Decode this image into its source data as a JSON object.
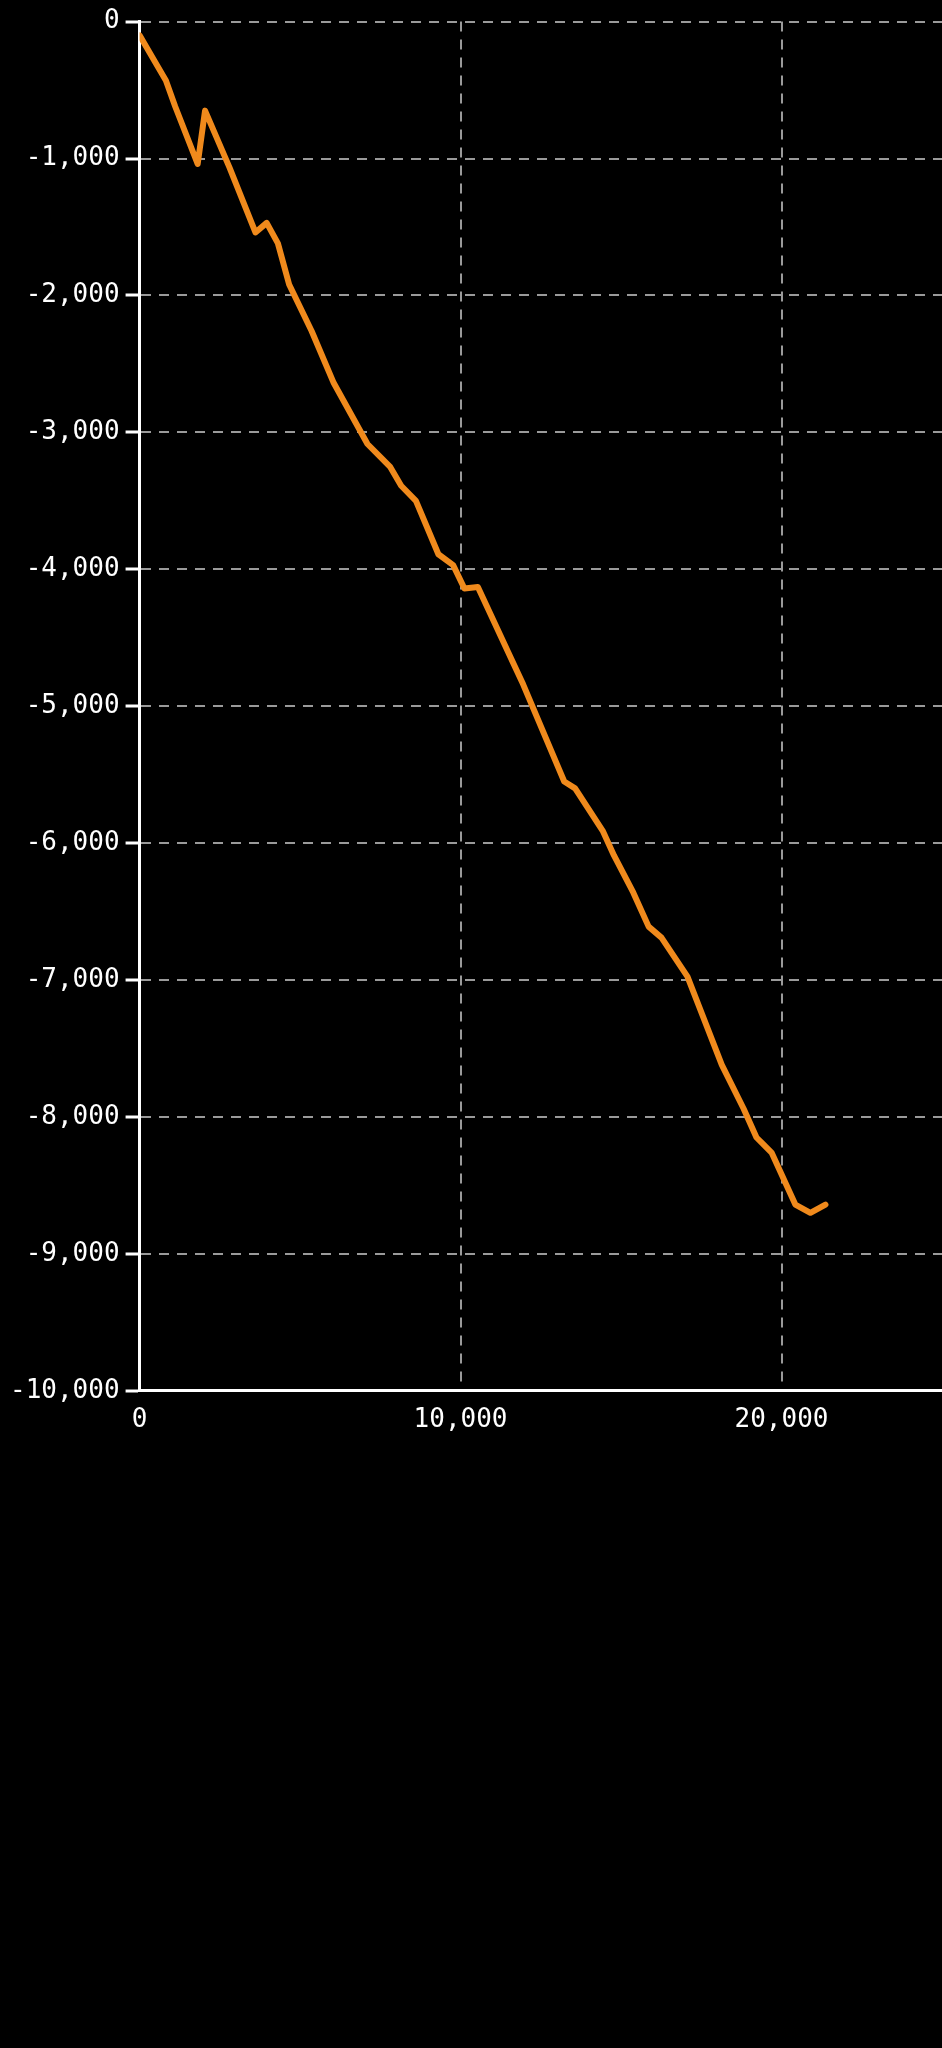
{
  "chart_data": {
    "type": "line",
    "x": [
      0,
      470,
      820,
      1110,
      1810,
      2040,
      2800,
      3610,
      3960,
      4310,
      4660,
      5360,
      6050,
      7100,
      7800,
      8150,
      8610,
      9310,
      9770,
      10120,
      10540,
      11950,
      13230,
      13570,
      14440,
      14780,
      15380,
      15860,
      16260,
      17070,
      18140,
      18820,
      19220,
      19690,
      20430,
      20900,
      21370
    ],
    "series": [
      {
        "color": "#f08a1c",
        "values": [
          -100,
          -290,
          -430,
          -620,
          -1040,
          -650,
          -1065,
          -1540,
          -1470,
          -1620,
          -1920,
          -2260,
          -2640,
          -3085,
          -3250,
          -3390,
          -3500,
          -3890,
          -3970,
          -4140,
          -4130,
          -4840,
          -5550,
          -5600,
          -5915,
          -6090,
          -6360,
          -6610,
          -6690,
          -6975,
          -7620,
          -7940,
          -8150,
          -8260,
          -8640,
          -8700,
          -8640
        ]
      }
    ],
    "xlim": [
      0,
      25000
    ],
    "xticks": [
      0,
      {
        "value": 10000,
        "label": "10,000"
      },
      {
        "value": 20000,
        "label": "20,000"
      }
    ],
    "ylim": [
      -10000,
      0
    ],
    "yticks": [
      0,
      {
        "value": -1000,
        "label": "-1,000"
      },
      {
        "value": -2000,
        "label": "-2,000"
      },
      {
        "value": -3000,
        "label": "-3,000"
      },
      {
        "value": -4000,
        "label": "-4,000"
      },
      {
        "value": -5000,
        "label": "-5,000"
      },
      {
        "value": -6000,
        "label": "-6,000"
      },
      {
        "value": -7000,
        "label": "-7,000"
      },
      {
        "value": -8000,
        "label": "-8,000"
      },
      {
        "value": -9000,
        "label": "-9,000"
      },
      {
        "value": -10000,
        "label": "-10,000"
      }
    ],
    "grid": true,
    "legend": false,
    "marker": "none",
    "line_style": "solid"
  }
}
